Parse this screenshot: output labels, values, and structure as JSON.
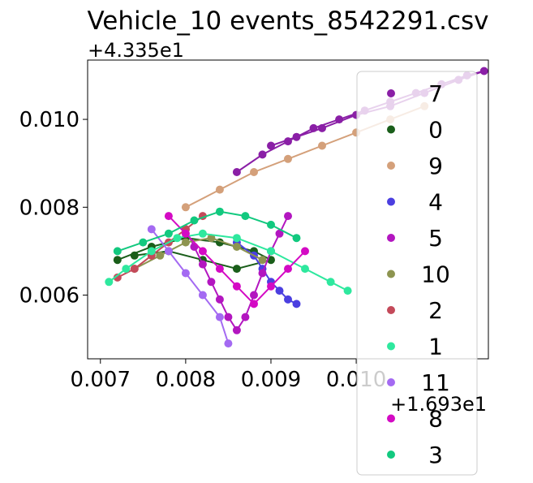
{
  "chart_data": {
    "type": "scatter",
    "title": "Vehicle_10 events_8542291.csv",
    "xlabel": "",
    "ylabel": "",
    "x_offset_label": "+1.693e1",
    "y_offset_label": "+4.335e1",
    "xlim": [
      0.00685,
      0.01155
    ],
    "ylim": [
      0.00455,
      0.01135
    ],
    "x_ticks": [
      0.007,
      0.008,
      0.009,
      0.01
    ],
    "x_tick_labels": [
      "0.007",
      "0.008",
      "0.009",
      "0.010"
    ],
    "y_ticks": [
      0.006,
      0.008,
      0.01
    ],
    "y_tick_labels": [
      "0.006",
      "0.008",
      "0.010"
    ],
    "grid": false,
    "legend_position": "right",
    "series": [
      {
        "name": "7",
        "color": "#8a1fa6",
        "x": [
          0.0086,
          0.0089,
          0.0092,
          0.0095,
          0.0098,
          0.0101,
          0.0104,
          0.0107,
          0.011,
          0.0113,
          0.0115,
          0.0112,
          0.0108,
          0.0104,
          0.01,
          0.0096,
          0.0093,
          0.009
        ],
        "y": [
          0.0088,
          0.0092,
          0.0095,
          0.0098,
          0.01,
          0.0102,
          0.0104,
          0.0106,
          0.0108,
          0.011,
          0.0111,
          0.0109,
          0.0106,
          0.0103,
          0.0101,
          0.0098,
          0.0096,
          0.0094
        ]
      },
      {
        "name": "0",
        "color": "#1a5e1a",
        "x": [
          0.0072,
          0.0076,
          0.008,
          0.0084,
          0.0088,
          0.009,
          0.0086,
          0.0082,
          0.0078,
          0.0074
        ],
        "y": [
          0.0068,
          0.0071,
          0.0073,
          0.0072,
          0.007,
          0.0068,
          0.0066,
          0.0068,
          0.007,
          0.0069
        ]
      },
      {
        "name": "9",
        "color": "#d4a07a",
        "x": [
          0.008,
          0.0084,
          0.0088,
          0.0092,
          0.0096,
          0.01,
          0.0104,
          0.0108
        ],
        "y": [
          0.008,
          0.0084,
          0.0088,
          0.0091,
          0.0094,
          0.0097,
          0.01,
          0.0103
        ]
      },
      {
        "name": "4",
        "color": "#4b3fe0",
        "x": [
          0.0086,
          0.0088,
          0.0089,
          0.009,
          0.0091,
          0.0092,
          0.0093
        ],
        "y": [
          0.0072,
          0.0069,
          0.0066,
          0.0063,
          0.0061,
          0.0059,
          0.0058
        ]
      },
      {
        "name": "5",
        "color": "#b316c0",
        "x": [
          0.008,
          0.0081,
          0.0082,
          0.0083,
          0.0084,
          0.0085,
          0.0086,
          0.0087,
          0.0088,
          0.0089,
          0.009,
          0.0091,
          0.0092
        ],
        "y": [
          0.0075,
          0.0071,
          0.0067,
          0.0063,
          0.0059,
          0.0055,
          0.0052,
          0.0055,
          0.006,
          0.0065,
          0.007,
          0.0074,
          0.0078
        ]
      },
      {
        "name": "10",
        "color": "#8d9450",
        "x": [
          0.0074,
          0.0077,
          0.008,
          0.0083,
          0.0086,
          0.0089
        ],
        "y": [
          0.0066,
          0.0069,
          0.0072,
          0.0073,
          0.0071,
          0.0068
        ]
      },
      {
        "name": "2",
        "color": "#c44a5a",
        "x": [
          0.0072,
          0.0074,
          0.0076,
          0.0078,
          0.008,
          0.0082
        ],
        "y": [
          0.0064,
          0.0066,
          0.0069,
          0.0072,
          0.0075,
          0.0078
        ]
      },
      {
        "name": "1",
        "color": "#2ee89e",
        "x": [
          0.0071,
          0.0073,
          0.0076,
          0.0079,
          0.0082,
          0.0086,
          0.009,
          0.0094,
          0.0097,
          0.0099
        ],
        "y": [
          0.0063,
          0.0066,
          0.007,
          0.0073,
          0.0074,
          0.0073,
          0.007,
          0.0066,
          0.0063,
          0.0061
        ]
      },
      {
        "name": "11",
        "color": "#a46af2",
        "x": [
          0.0076,
          0.0078,
          0.008,
          0.0082,
          0.0084,
          0.0085
        ],
        "y": [
          0.0075,
          0.007,
          0.0065,
          0.006,
          0.0055,
          0.0049
        ]
      },
      {
        "name": "8",
        "color": "#d40ac4",
        "x": [
          0.0078,
          0.008,
          0.0082,
          0.0084,
          0.0086,
          0.0088,
          0.009,
          0.0092,
          0.0094
        ],
        "y": [
          0.0078,
          0.0074,
          0.007,
          0.0066,
          0.0062,
          0.0058,
          0.0062,
          0.0066,
          0.007
        ]
      },
      {
        "name": "3",
        "color": "#12c97f",
        "x": [
          0.0072,
          0.0075,
          0.0078,
          0.0081,
          0.0084,
          0.0087,
          0.009,
          0.0093
        ],
        "y": [
          0.007,
          0.0072,
          0.0074,
          0.0077,
          0.0079,
          0.0078,
          0.0076,
          0.0073
        ]
      }
    ]
  }
}
